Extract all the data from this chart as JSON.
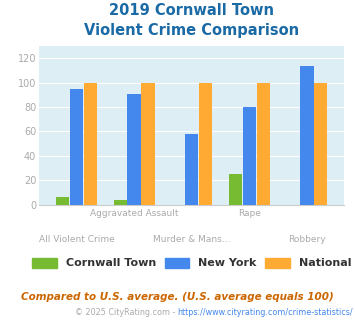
{
  "title_line1": "2019 Cornwall Town",
  "title_line2": "Violent Crime Comparison",
  "categories": [
    "All Violent Crime",
    "Aggravated Assault",
    "Murder & Mans...",
    "Rape",
    "Robbery"
  ],
  "cornwall_town": [
    6,
    4,
    0,
    25,
    0
  ],
  "new_york": [
    95,
    91,
    58,
    80,
    114
  ],
  "national": [
    100,
    100,
    100,
    100,
    100
  ],
  "color_cornwall": "#77bb33",
  "color_newyork": "#4488ee",
  "color_national": "#ffaa33",
  "ylim": [
    0,
    130
  ],
  "yticks": [
    0,
    20,
    40,
    60,
    80,
    100,
    120
  ],
  "background_color": "#ddeef4",
  "legend_labels": [
    "Cornwall Town",
    "New York",
    "National"
  ],
  "footnote1": "Compared to U.S. average. (U.S. average equals 100)",
  "footnote2_prefix": "© 2025 CityRating.com - ",
  "footnote2_link": "https://www.cityrating.com/crime-statistics/",
  "title_color": "#1a6aa5",
  "axis_label_color": "#aaaaaa",
  "footnote1_color": "#cc6600",
  "footnote2_color": "#aaaaaa",
  "footnote2_link_color": "#4488ee"
}
